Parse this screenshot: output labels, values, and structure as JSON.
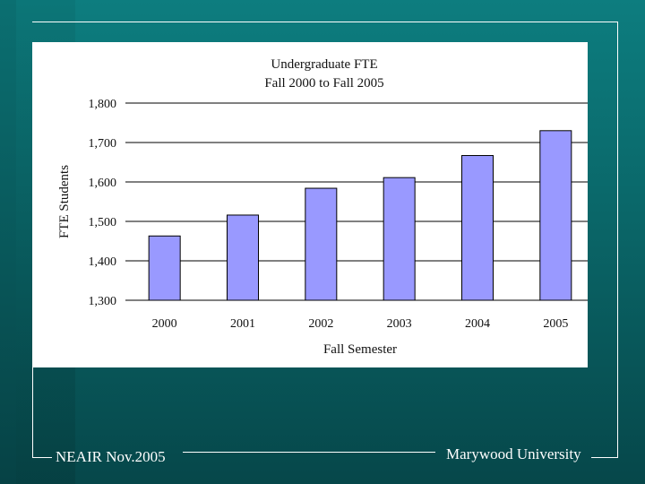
{
  "footer": {
    "left_text": "NEAIR Nov.2005",
    "right_text": "Marywood University"
  },
  "chart_data": {
    "type": "bar",
    "title": "Undergraduate FTE",
    "subtitle": "Fall 2000 to Fall 2005",
    "xlabel": "Fall Semester",
    "ylabel": "FTE Students",
    "categories": [
      "2000",
      "2001",
      "2002",
      "2003",
      "2004",
      "2005"
    ],
    "values": [
      1463,
      1516,
      1584,
      1611,
      1667,
      1730
    ],
    "ylim": [
      1300,
      1800
    ],
    "yticks": [
      1300,
      1400,
      1500,
      1600,
      1700,
      1800
    ],
    "ytick_labels": [
      "1,300",
      "1,400",
      "1,500",
      "1,600",
      "1,700",
      "1,800"
    ],
    "grid": true,
    "bar_color": "#9999ff"
  }
}
